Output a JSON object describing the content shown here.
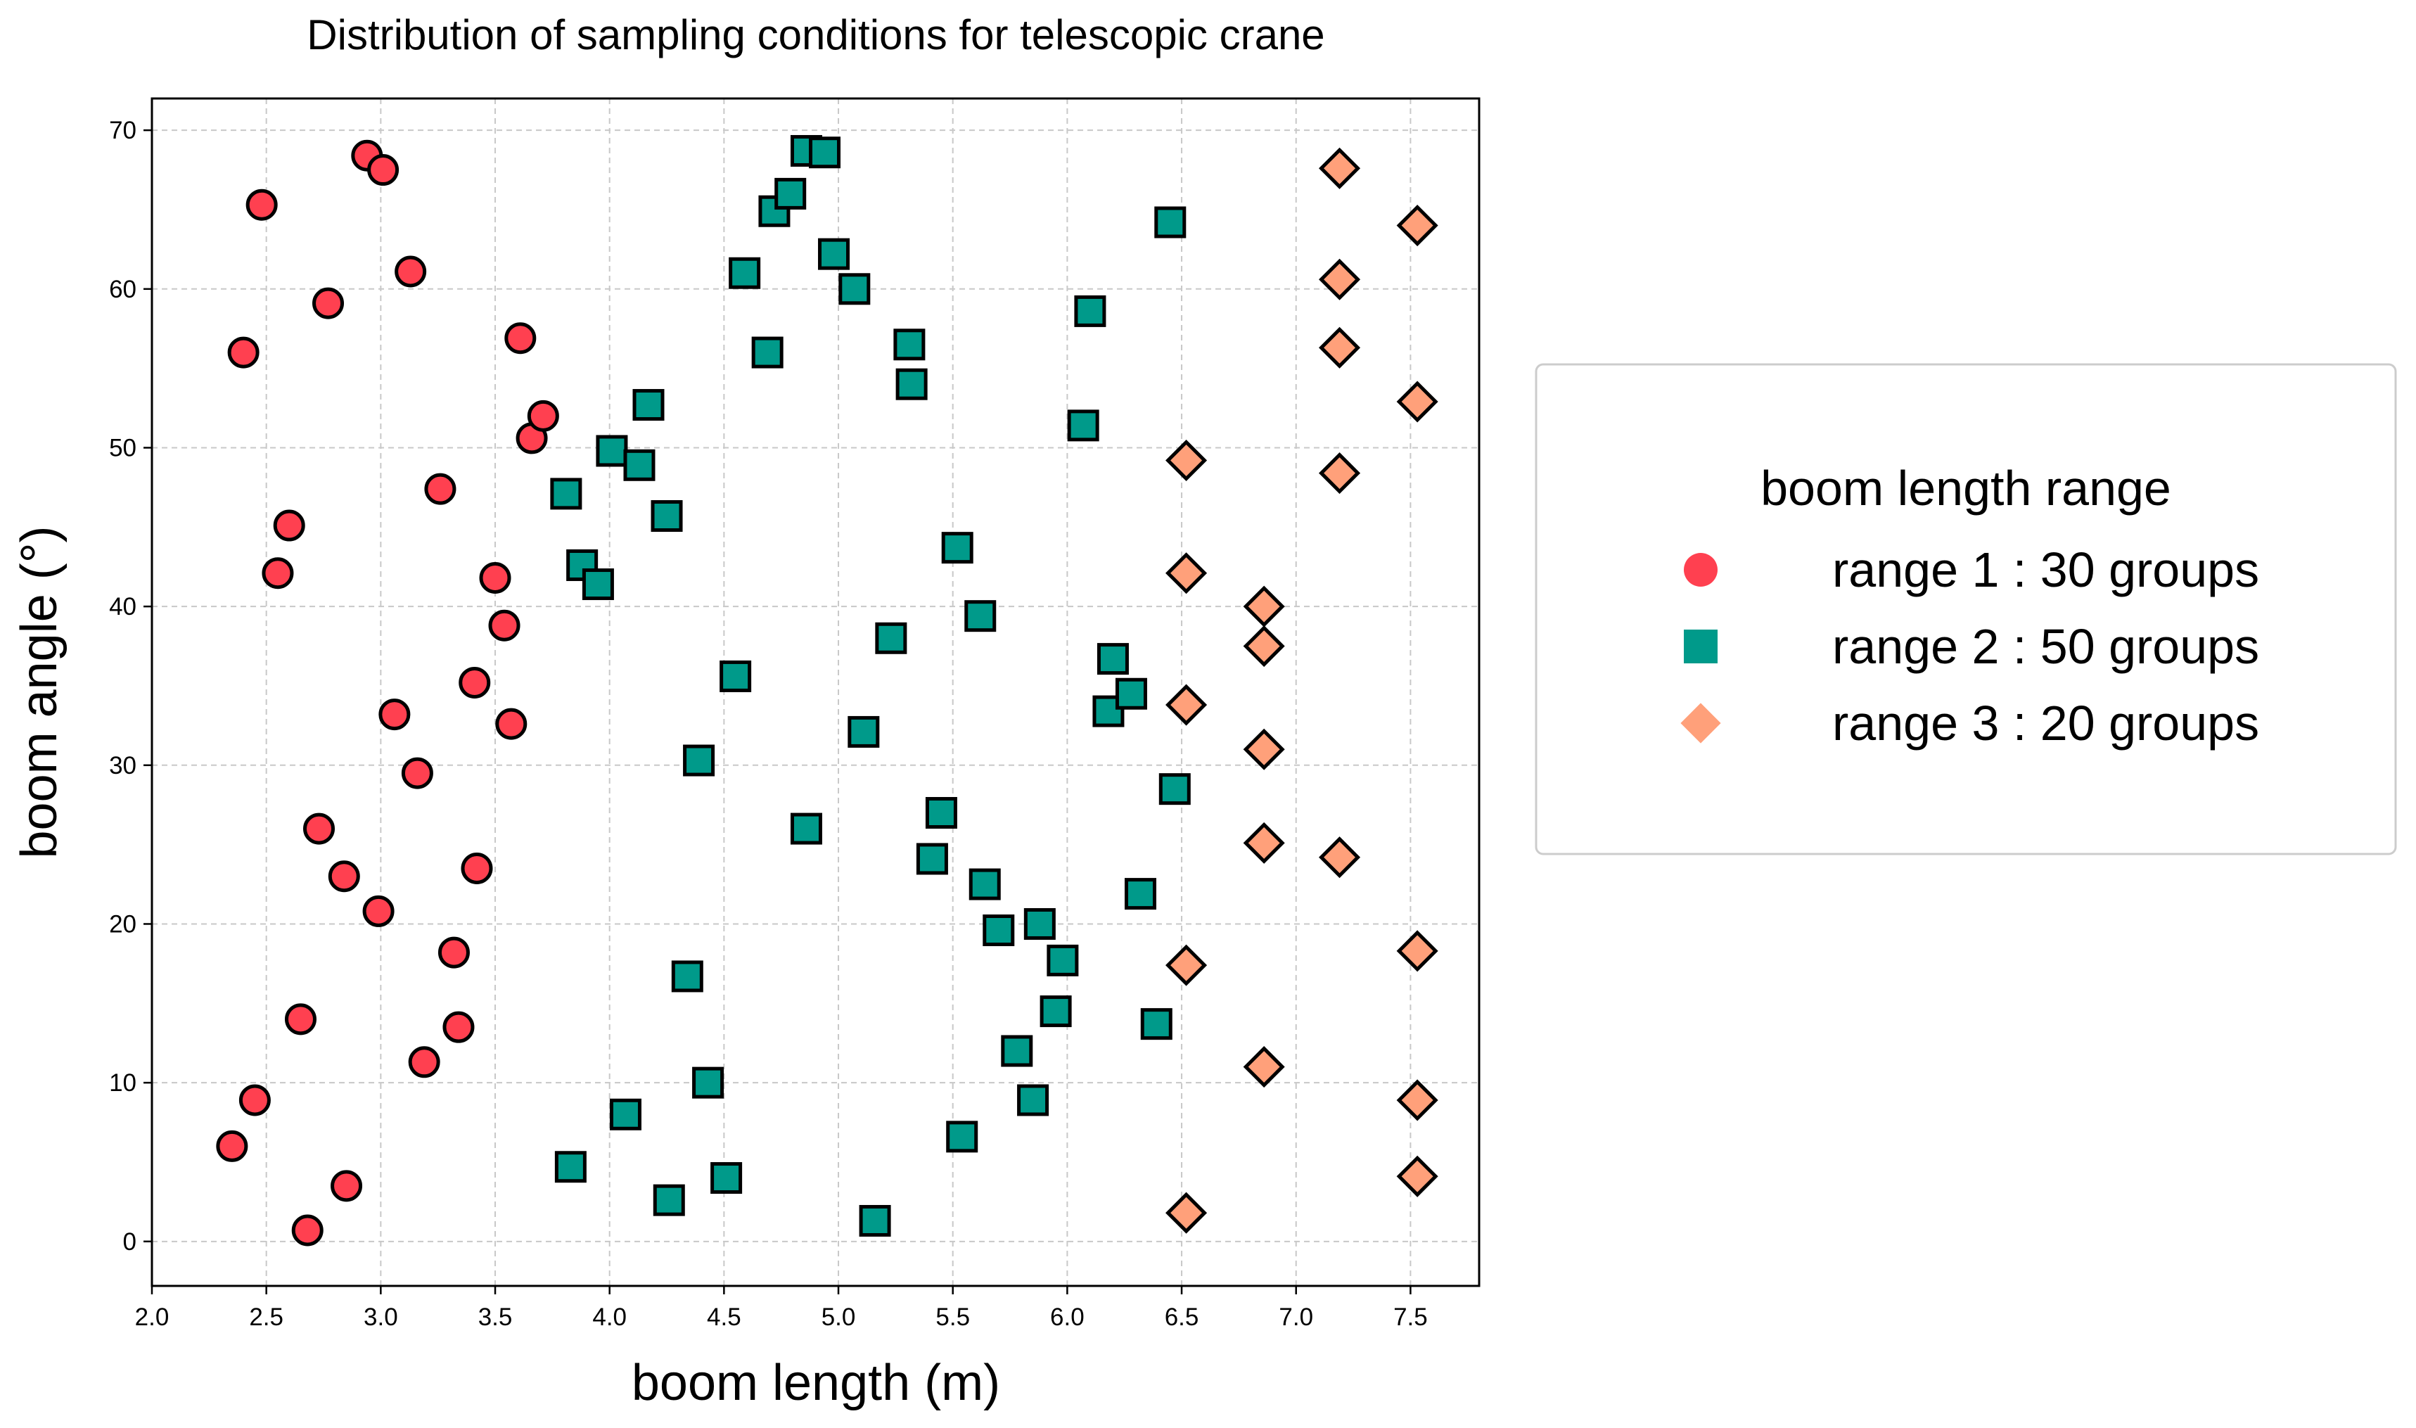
{
  "chart_data": {
    "type": "scatter",
    "title": "Distribution of sampling conditions for telescopic crane",
    "xlabel": "boom length (m)",
    "ylabel": "boom angle (°)",
    "xlim": [
      2.0,
      7.8
    ],
    "ylim": [
      -2.8,
      72
    ],
    "xticks": [
      "2.0",
      "2.5",
      "3.0",
      "3.5",
      "4.0",
      "4.5",
      "5.0",
      "5.5",
      "6.0",
      "6.5",
      "7.0",
      "7.5"
    ],
    "yticks": [
      "0",
      "10",
      "20",
      "30",
      "40",
      "50",
      "60",
      "70"
    ],
    "grid": true,
    "legend": {
      "title": "boom length range",
      "placement": "outside-right"
    },
    "series": [
      {
        "name": "range 1 : 30 groups",
        "marker": "circle",
        "color": "#ff4050",
        "points": [
          [
            2.35,
            6
          ],
          [
            2.45,
            8.9
          ],
          [
            2.4,
            56
          ],
          [
            2.48,
            65.3
          ],
          [
            2.55,
            42.1
          ],
          [
            2.6,
            45.1
          ],
          [
            2.65,
            14
          ],
          [
            2.68,
            0.7
          ],
          [
            2.73,
            26
          ],
          [
            2.77,
            59.1
          ],
          [
            2.84,
            23
          ],
          [
            2.85,
            3.5
          ],
          [
            2.94,
            68.4
          ],
          [
            2.99,
            20.8
          ],
          [
            3.01,
            67.5
          ],
          [
            3.06,
            33.2
          ],
          [
            3.13,
            61.1
          ],
          [
            3.16,
            29.5
          ],
          [
            3.19,
            11.3
          ],
          [
            3.26,
            47.4
          ],
          [
            3.32,
            18.2
          ],
          [
            3.34,
            13.5
          ],
          [
            3.41,
            35.2
          ],
          [
            3.42,
            23.5
          ],
          [
            3.5,
            41.8
          ],
          [
            3.54,
            38.8
          ],
          [
            3.57,
            32.6
          ],
          [
            3.61,
            56.9
          ],
          [
            3.66,
            50.6
          ],
          [
            3.71,
            52
          ]
        ]
      },
      {
        "name": "range 2 : 50 groups",
        "marker": "square",
        "color": "#009a8a",
        "points": [
          [
            3.81,
            47.1
          ],
          [
            3.83,
            4.7
          ],
          [
            3.88,
            42.6
          ],
          [
            3.95,
            41.4
          ],
          [
            4.01,
            49.8
          ],
          [
            4.07,
            8
          ],
          [
            4.13,
            48.9
          ],
          [
            4.17,
            52.7
          ],
          [
            4.25,
            45.7
          ],
          [
            4.26,
            2.6
          ],
          [
            4.34,
            16.7
          ],
          [
            4.39,
            30.3
          ],
          [
            4.43,
            10
          ],
          [
            4.51,
            4
          ],
          [
            4.55,
            35.6
          ],
          [
            4.59,
            61
          ],
          [
            4.69,
            56
          ],
          [
            4.72,
            64.9
          ],
          [
            4.79,
            66
          ],
          [
            4.86,
            68.7
          ],
          [
            4.86,
            26
          ],
          [
            4.94,
            68.6
          ],
          [
            4.98,
            62.2
          ],
          [
            5.07,
            60
          ],
          [
            5.11,
            32.1
          ],
          [
            5.16,
            1.3
          ],
          [
            5.23,
            38
          ],
          [
            5.31,
            56.5
          ],
          [
            5.32,
            54
          ],
          [
            5.41,
            24.1
          ],
          [
            5.45,
            27
          ],
          [
            5.52,
            43.7
          ],
          [
            5.54,
            6.6
          ],
          [
            5.62,
            39.4
          ],
          [
            5.64,
            22.5
          ],
          [
            5.7,
            19.6
          ],
          [
            5.78,
            12
          ],
          [
            5.85,
            8.9
          ],
          [
            5.88,
            20
          ],
          [
            5.95,
            14.5
          ],
          [
            5.98,
            17.7
          ],
          [
            6.07,
            51.4
          ],
          [
            6.1,
            58.6
          ],
          [
            6.18,
            33.4
          ],
          [
            6.2,
            36.7
          ],
          [
            6.28,
            34.5
          ],
          [
            6.32,
            21.9
          ],
          [
            6.39,
            13.7
          ],
          [
            6.45,
            64.2
          ],
          [
            6.47,
            28.5
          ]
        ]
      },
      {
        "name": "range 3 : 20 groups",
        "marker": "diamond",
        "color": "#ffa07a",
        "points": [
          [
            6.52,
            1.8
          ],
          [
            6.52,
            17.4
          ],
          [
            6.52,
            33.8
          ],
          [
            6.52,
            42.1
          ],
          [
            6.52,
            49.2
          ],
          [
            6.86,
            11
          ],
          [
            6.86,
            25.1
          ],
          [
            6.86,
            31
          ],
          [
            6.86,
            37.5
          ],
          [
            6.86,
            40
          ],
          [
            7.19,
            24.2
          ],
          [
            7.19,
            48.4
          ],
          [
            7.19,
            56.3
          ],
          [
            7.19,
            60.6
          ],
          [
            7.19,
            67.6
          ],
          [
            7.53,
            4.1
          ],
          [
            7.53,
            8.9
          ],
          [
            7.53,
            18.3
          ],
          [
            7.53,
            52.9
          ],
          [
            7.53,
            64
          ]
        ]
      }
    ]
  }
}
